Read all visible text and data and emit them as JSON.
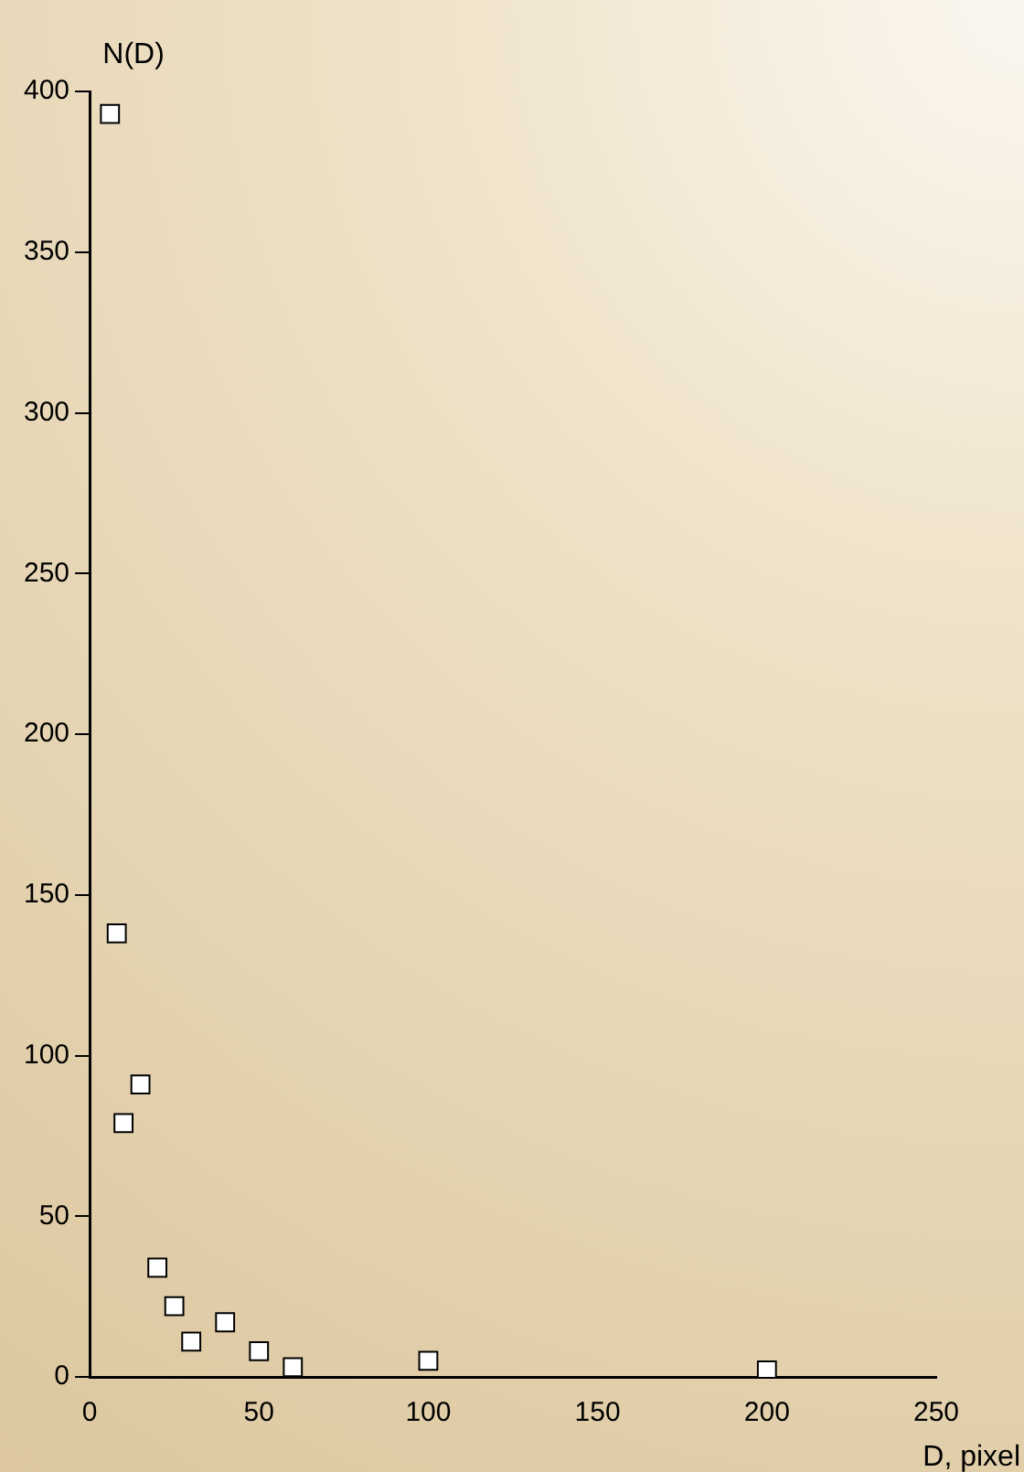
{
  "chart_data": {
    "type": "scatter",
    "xlabel": "D, pixel",
    "ylabel": "N(D)",
    "x": [
      6,
      8,
      10,
      15,
      20,
      25,
      30,
      40,
      50,
      60,
      100,
      200
    ],
    "values": [
      393,
      138,
      79,
      91,
      34,
      22,
      11,
      17,
      8,
      3,
      5,
      2
    ],
    "color": "#ffffff",
    "marker": "square",
    "xlim": [
      0,
      250
    ],
    "xticks": [
      0,
      50,
      100,
      150,
      200,
      250
    ],
    "ylim": [
      0,
      400
    ],
    "yticks": [
      0,
      50,
      100,
      150,
      200,
      250,
      300,
      350,
      400
    ],
    "grid": false,
    "legend": false
  }
}
